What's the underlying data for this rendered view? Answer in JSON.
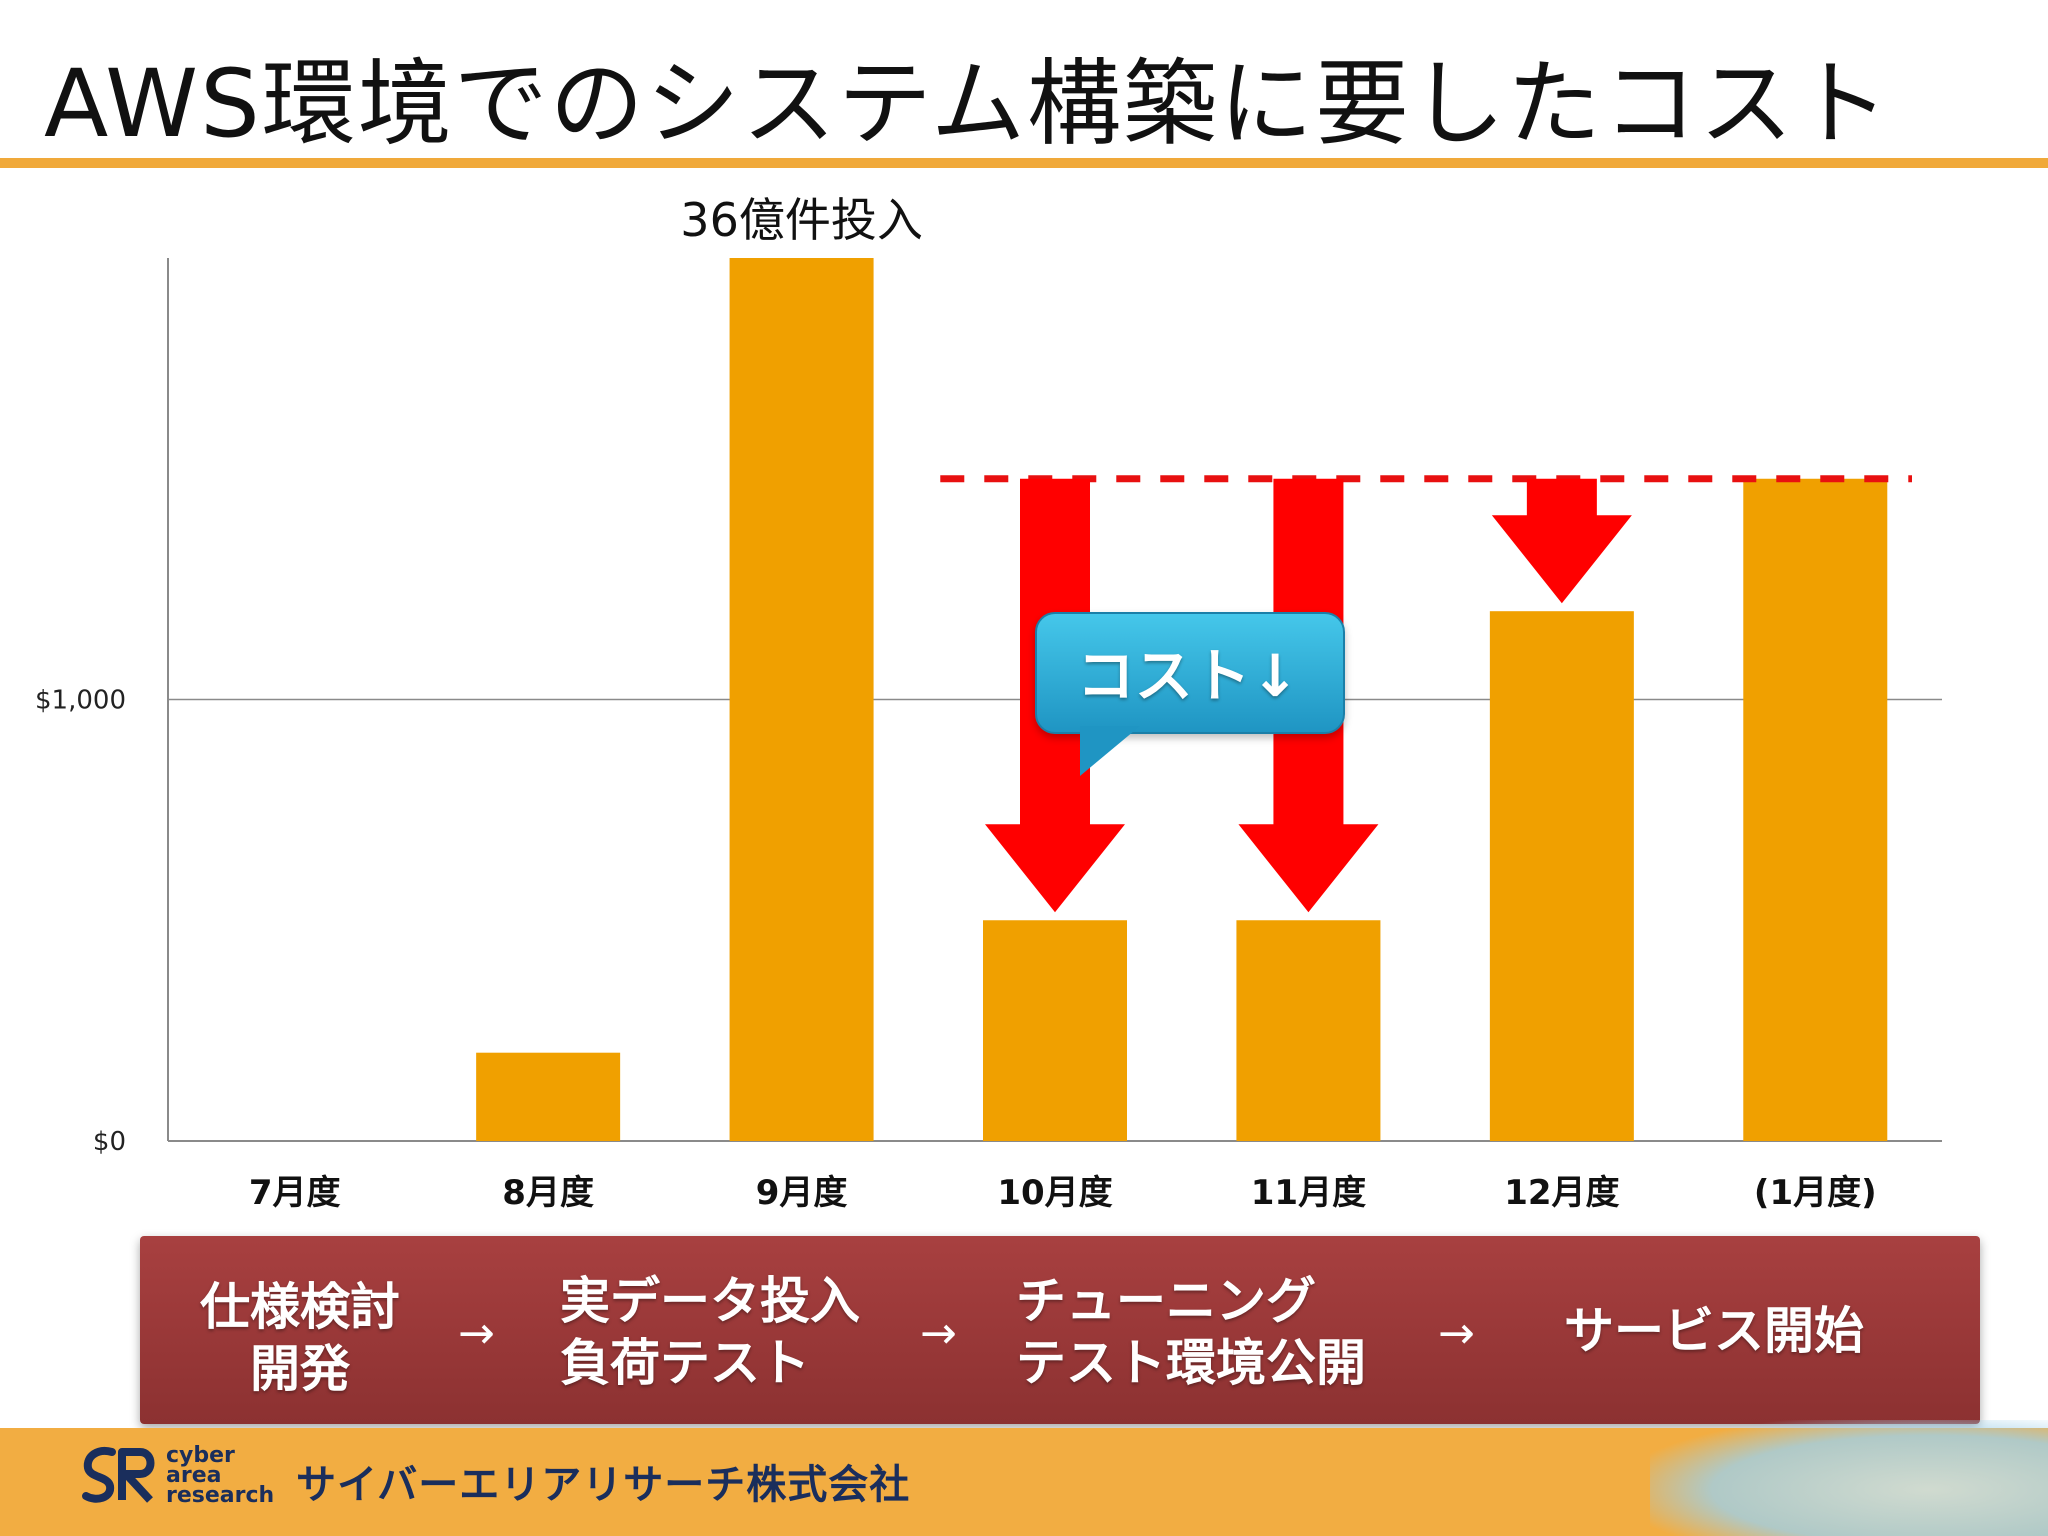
{
  "title": "AWS環境でのシステム構築に要したコスト",
  "chart_data": {
    "type": "bar",
    "categories": [
      "7月度",
      "8月度",
      "9月度",
      "10月度",
      "11月度",
      "12月度",
      "(1月度)"
    ],
    "values": [
      0,
      200,
      2000,
      500,
      500,
      1200,
      1500
    ],
    "ylim": [
      0,
      2000
    ],
    "yticks": [
      {
        "value": 0,
        "label": "$0"
      },
      {
        "value": 1000,
        "label": "$1,000"
      }
    ],
    "grid": true,
    "bar_color": "#f0a000",
    "reference_line": {
      "value": 1500,
      "from_category": 3,
      "color": "#e81010",
      "style": "dashed"
    },
    "reduction_arrows": [
      {
        "category": 3,
        "from": 1500,
        "to": 500
      },
      {
        "category": 4,
        "from": 1500,
        "to": 500
      },
      {
        "category": 5,
        "from": 1500,
        "to": 1200
      }
    ],
    "annotations": [
      {
        "category": 2,
        "text": "36億件投入"
      }
    ],
    "callout": {
      "text": "コスト↓",
      "color": "#2aa8d8"
    }
  },
  "phases": [
    {
      "lines": [
        "仕様検討",
        "開発"
      ]
    },
    {
      "lines": [
        "実データ投入",
        "負荷テスト"
      ]
    },
    {
      "lines": [
        "チューニング",
        "テスト環境公開"
      ]
    },
    {
      "lines": [
        "サービス開始"
      ]
    }
  ],
  "phase_arrow": "→",
  "footer": {
    "logo_words": [
      "cyber",
      "area",
      "research"
    ],
    "company": "サイバーエリアリサーチ株式会社",
    "background": "#f2ad42"
  }
}
